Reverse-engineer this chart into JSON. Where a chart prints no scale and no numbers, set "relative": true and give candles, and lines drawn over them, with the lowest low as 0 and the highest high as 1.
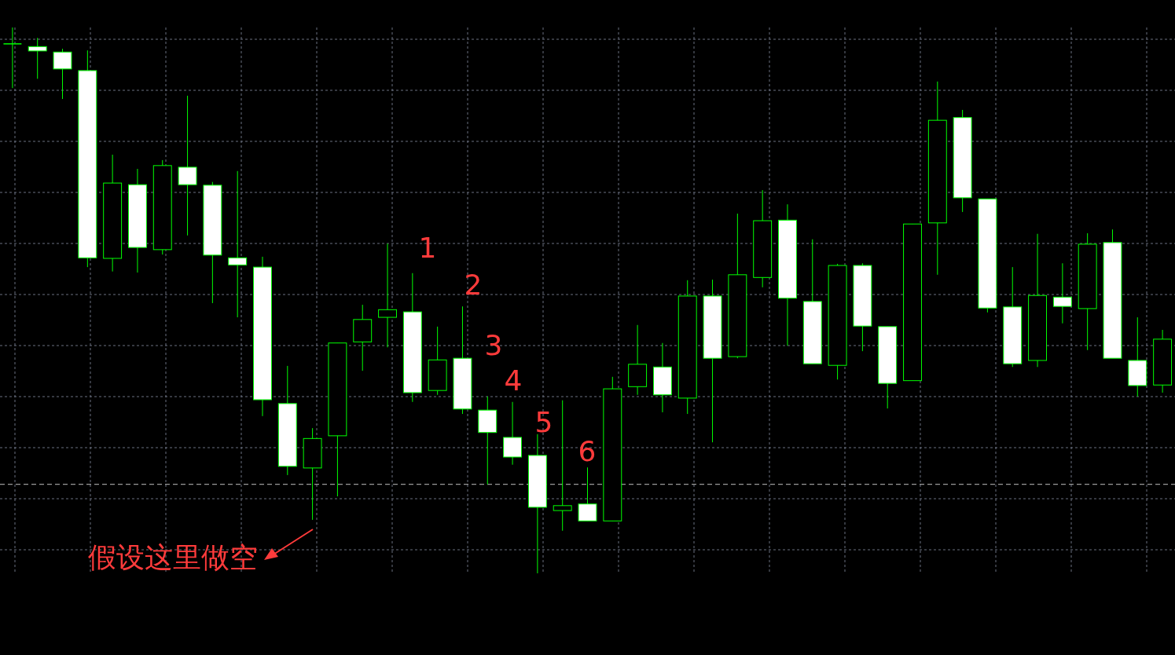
{
  "chart_data": {
    "type": "candlestick",
    "relative": true,
    "grid": true,
    "categories": [
      null,
      null,
      null,
      null,
      null,
      null,
      null,
      null,
      null,
      null,
      null,
      null,
      null,
      null,
      null,
      null,
      null,
      null,
      null,
      null,
      null,
      null,
      null,
      null,
      null,
      null,
      null,
      null,
      null,
      null,
      null,
      null,
      null,
      null,
      null,
      null,
      null,
      null,
      null,
      null,
      null,
      null,
      null,
      null,
      null,
      null,
      null
    ],
    "ohlc": [
      [
        0.97,
        1.0,
        0.889,
        0.97
      ],
      [
        0.965,
        0.981,
        0.906,
        0.957
      ],
      [
        0.955,
        0.961,
        0.869,
        0.924
      ],
      [
        0.921,
        0.958,
        0.561,
        0.578
      ],
      [
        0.577,
        0.767,
        0.553,
        0.715
      ],
      [
        0.712,
        0.741,
        0.551,
        0.597
      ],
      [
        0.593,
        0.757,
        0.584,
        0.747
      ],
      [
        0.744,
        0.875,
        0.619,
        0.712
      ],
      [
        0.711,
        0.717,
        0.495,
        0.583
      ],
      [
        0.578,
        0.737,
        0.469,
        0.565
      ],
      [
        0.561,
        0.58,
        0.288,
        0.318
      ],
      [
        0.311,
        0.38,
        0.18,
        0.196
      ],
      [
        0.193,
        0.266,
        0.098,
        0.247
      ],
      [
        0.252,
        0.422,
        0.141,
        0.422
      ],
      [
        0.424,
        0.492,
        0.371,
        0.465
      ],
      [
        0.469,
        0.604,
        0.414,
        0.483
      ],
      [
        0.479,
        0.55,
        0.314,
        0.331
      ],
      [
        0.335,
        0.452,
        0.327,
        0.391
      ],
      [
        0.394,
        0.489,
        0.292,
        0.301
      ],
      [
        0.299,
        0.324,
        0.163,
        0.258
      ],
      [
        0.249,
        0.314,
        0.199,
        0.213
      ],
      [
        0.216,
        0.255,
        0.0,
        0.121
      ],
      [
        0.115,
        0.317,
        0.078,
        0.124
      ],
      [
        0.127,
        0.194,
        0.096,
        0.096
      ],
      [
        0.096,
        0.36,
        0.096,
        0.338
      ],
      [
        0.342,
        0.455,
        0.327,
        0.383
      ],
      [
        0.378,
        0.422,
        0.295,
        0.327
      ],
      [
        0.321,
        0.537,
        0.292,
        0.508
      ],
      [
        0.508,
        0.538,
        0.24,
        0.394
      ],
      [
        0.397,
        0.659,
        0.394,
        0.547
      ],
      [
        0.542,
        0.702,
        0.524,
        0.646
      ],
      [
        0.647,
        0.676,
        0.417,
        0.504
      ],
      [
        0.498,
        0.612,
        0.384,
        0.384
      ],
      [
        0.381,
        0.567,
        0.355,
        0.564
      ],
      [
        0.564,
        0.568,
        0.407,
        0.453
      ],
      [
        0.452,
        0.452,
        0.302,
        0.348
      ],
      [
        0.353,
        0.64,
        0.353,
        0.64
      ],
      [
        0.642,
        0.901,
        0.547,
        0.83
      ],
      [
        0.835,
        0.849,
        0.662,
        0.688
      ],
      [
        0.686,
        0.686,
        0.478,
        0.486
      ],
      [
        0.488,
        0.561,
        0.378,
        0.384
      ],
      [
        0.39,
        0.622,
        0.378,
        0.509
      ],
      [
        0.506,
        0.568,
        0.458,
        0.489
      ],
      [
        0.485,
        0.623,
        0.409,
        0.603
      ],
      [
        0.606,
        0.63,
        0.394,
        0.394
      ],
      [
        0.39,
        0.469,
        0.324,
        0.344
      ],
      [
        0.345,
        0.446,
        0.331,
        0.429
      ]
    ],
    "ref_lines": [
      {
        "axis": "y",
        "value": 0.163,
        "line_style": "dashed",
        "color": "#c0c0c0"
      }
    ],
    "annotations": [
      "1",
      "2",
      "3",
      "4",
      "5",
      "6",
      "假设这里做空"
    ]
  }
}
